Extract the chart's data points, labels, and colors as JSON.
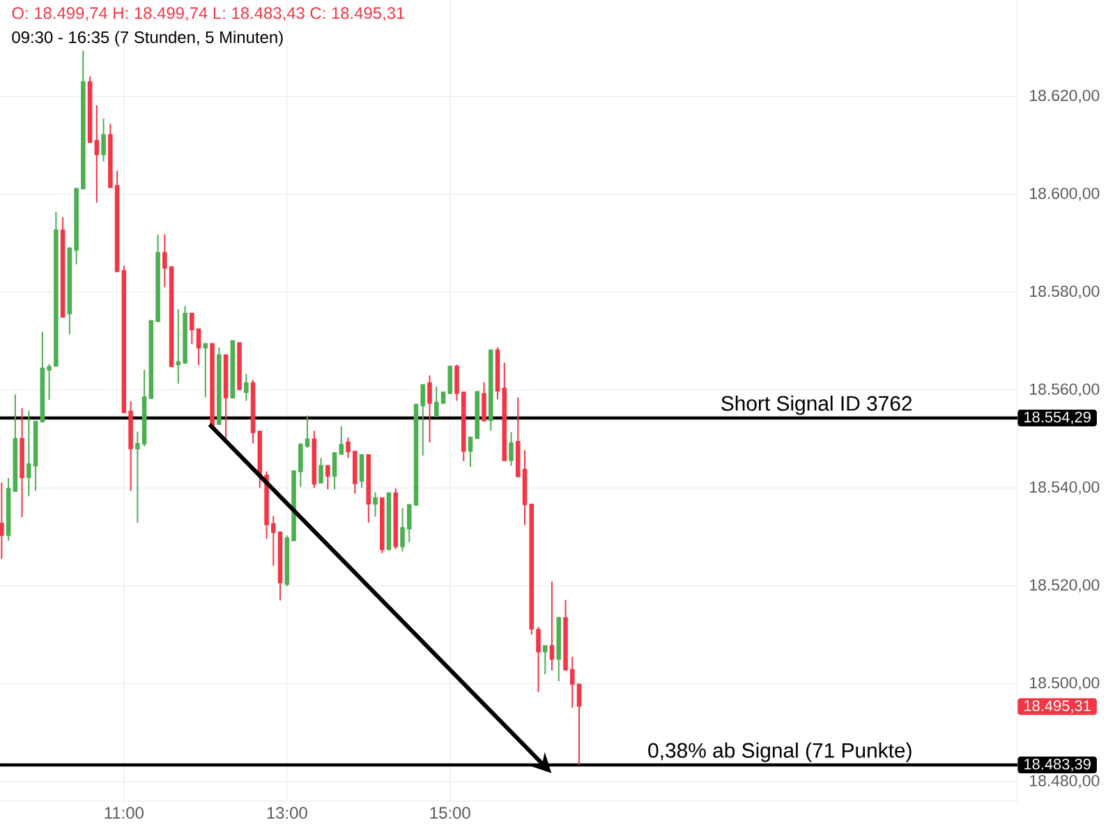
{
  "chart_data": {
    "type": "candlestick",
    "title": "O: 18.499,74  H: 18.499,74  L: 18.483,43  C: 18.495,31",
    "subtitle": "09:30 - 16:35  (7 Stunden, 5 Minuten)",
    "x": [
      9.5,
      9.5833,
      9.6667,
      9.75,
      9.8333,
      9.9167,
      10.0,
      10.0833,
      10.1667,
      10.25,
      10.3333,
      10.4167,
      10.5,
      10.5833,
      10.6667,
      10.75,
      10.8333,
      10.9167,
      11.0,
      11.0833,
      11.1667,
      11.25,
      11.3333,
      11.4167,
      11.5,
      11.5833,
      11.6667,
      11.75,
      11.8333,
      11.9167,
      12.0,
      12.0833,
      12.1667,
      12.25,
      12.3333,
      12.4167,
      12.5,
      12.5833,
      12.6667,
      12.75,
      12.8333,
      12.9167,
      13.0,
      13.0833,
      13.1667,
      13.25,
      13.3333,
      13.4167,
      13.5,
      13.5833,
      13.6667,
      13.75,
      13.8333,
      13.9167,
      14.0,
      14.0833,
      14.1667,
      14.25,
      14.3333,
      14.4167,
      14.5,
      14.5833,
      14.6667,
      14.75,
      14.8333,
      14.9167,
      15.0,
      15.0833,
      15.1667,
      15.25,
      15.3333,
      15.4167,
      15.5,
      15.5833,
      15.6667,
      15.75,
      15.8333,
      15.9167,
      16.0,
      16.0833,
      16.1667,
      16.25,
      16.3333,
      16.4167,
      16.5,
      16.5833
    ],
    "ohlc": [
      [
        18532.6,
        18541.1,
        18525.5,
        18530.2
      ],
      [
        18530.2,
        18542.0,
        18529.2,
        18539.7
      ],
      [
        18539.2,
        18559.1,
        18539.2,
        18549.9
      ],
      [
        18549.9,
        18556.3,
        18534.0,
        18542.0
      ],
      [
        18542.0,
        18555.8,
        18538.3,
        18544.7
      ],
      [
        18544.4,
        18553.4,
        18539.4,
        18553.4
      ],
      [
        18553.4,
        18571.9,
        18553.4,
        18564.3
      ],
      [
        18564.0,
        18565.3,
        18558.0,
        18564.6
      ],
      [
        18564.8,
        18596.4,
        18564.8,
        18592.5
      ],
      [
        18592.5,
        18595.3,
        18574.8,
        18574.8
      ],
      [
        18575.5,
        18589.2,
        18571.4,
        18588.8
      ],
      [
        18588.5,
        18601.3,
        18585.7,
        18601.0
      ],
      [
        18601.0,
        18629.3,
        18601.0,
        18622.8
      ],
      [
        18622.8,
        18624.1,
        18610.5,
        18610.5
      ],
      [
        18610.8,
        18618.2,
        18598.3,
        18608.0
      ],
      [
        18608.0,
        18615.5,
        18606.7,
        18612.0
      ],
      [
        18612.0,
        18614.4,
        18601.3,
        18601.3
      ],
      [
        18601.6,
        18604.8,
        18584.1,
        18584.1
      ],
      [
        18584.2,
        18585.4,
        18555.3,
        18555.3
      ],
      [
        18555.5,
        18557.7,
        18539.4,
        18547.9
      ],
      [
        18547.9,
        18551.5,
        18532.9,
        18548.9
      ],
      [
        18548.9,
        18564.1,
        18548.5,
        18558.4
      ],
      [
        18558.2,
        18574.0,
        18558.2,
        18574.0
      ],
      [
        18573.9,
        18591.8,
        18573.9,
        18587.9
      ],
      [
        18587.9,
        18591.8,
        18581.0,
        18584.8
      ],
      [
        18585.0,
        18585.0,
        18564.7,
        18564.7
      ],
      [
        18565.1,
        18576.5,
        18561.3,
        18565.6
      ],
      [
        18565.4,
        18577.2,
        18565.4,
        18575.5
      ],
      [
        18575.5,
        18575.8,
        18569.4,
        18572.2
      ],
      [
        18572.3,
        18572.3,
        18565.1,
        18568.5
      ],
      [
        18568.5,
        18569.3,
        18558.5,
        18569.3
      ],
      [
        18569.3,
        18569.3,
        18552.6,
        18552.6
      ],
      [
        18552.9,
        18568.7,
        18552.9,
        18567.0
      ],
      [
        18567.0,
        18567.3,
        18549.3,
        18558.3
      ],
      [
        18558.3,
        18570.1,
        18558.3,
        18569.9
      ],
      [
        18569.5,
        18569.5,
        18560.0,
        18560.0
      ],
      [
        18559.4,
        18563.3,
        18557.8,
        18561.3
      ],
      [
        18561.3,
        18562.1,
        18549.1,
        18551.2
      ],
      [
        18551.4,
        18551.4,
        18540.0,
        18542.4
      ],
      [
        18542.4,
        18543.4,
        18529.6,
        18532.4
      ],
      [
        18532.5,
        18534.3,
        18524.1,
        18530.8
      ],
      [
        18530.8,
        18530.8,
        18517.0,
        18520.5
      ],
      [
        18520.2,
        18530.3,
        18519.9,
        18529.6
      ],
      [
        18529.1,
        18543.3,
        18529.1,
        18543.3
      ],
      [
        18543.2,
        18549.2,
        18540.2,
        18548.7
      ],
      [
        18548.4,
        18554.8,
        18548.2,
        18549.8
      ],
      [
        18549.8,
        18551.7,
        18540.0,
        18540.7
      ],
      [
        18540.9,
        18546.1,
        18540.9,
        18544.4
      ],
      [
        18544.4,
        18544.4,
        18539.7,
        18542.3
      ],
      [
        18542.3,
        18547.3,
        18539.7,
        18547.0
      ],
      [
        18546.8,
        18552.6,
        18546.8,
        18548.7
      ],
      [
        18549.2,
        18550.3,
        18546.1,
        18547.3
      ],
      [
        18547.3,
        18547.3,
        18538.8,
        18540.8
      ],
      [
        18541.3,
        18546.6,
        18540.0,
        18546.6
      ],
      [
        18546.6,
        18546.6,
        18532.9,
        18536.6
      ],
      [
        18536.6,
        18539.1,
        18534.1,
        18537.8
      ],
      [
        18537.8,
        18537.8,
        18526.7,
        18527.3
      ],
      [
        18527.3,
        18538.8,
        18527.3,
        18538.8
      ],
      [
        18538.8,
        18539.9,
        18527.5,
        18527.9
      ],
      [
        18527.9,
        18535.9,
        18527.0,
        18531.7
      ],
      [
        18531.5,
        18536.7,
        18528.9,
        18536.4
      ],
      [
        18536.4,
        18557.2,
        18536.4,
        18556.9
      ],
      [
        18556.7,
        18560.9,
        18546.6,
        18560.9
      ],
      [
        18561.3,
        18563.0,
        18549.3,
        18557.2
      ],
      [
        18554.5,
        18560.7,
        18554.5,
        18557.3
      ],
      [
        18557.2,
        18559.7,
        18557.2,
        18559.4
      ],
      [
        18559.2,
        18564.7,
        18559.2,
        18564.7
      ],
      [
        18564.7,
        18565.2,
        18557.8,
        18559.2
      ],
      [
        18559.4,
        18559.4,
        18545.5,
        18547.4
      ],
      [
        18547.4,
        18550.2,
        18544.3,
        18550.2
      ],
      [
        18550.0,
        18559.5,
        18550.0,
        18559.5
      ],
      [
        18559.1,
        18561.6,
        18553.6,
        18553.6
      ],
      [
        18553.7,
        18568.0,
        18551.7,
        18568.0
      ],
      [
        18568.0,
        18568.7,
        18558.1,
        18559.7
      ],
      [
        18560.2,
        18565.6,
        18545.5,
        18545.5
      ],
      [
        18545.5,
        18551.4,
        18544.5,
        18549.0
      ],
      [
        18549.3,
        18558.5,
        18542.2,
        18542.2
      ],
      [
        18543.6,
        18547.7,
        18532.4,
        18536.5
      ],
      [
        18536.5,
        18536.5,
        18510.0,
        18511.1
      ],
      [
        18510.9,
        18511.6,
        18498.3,
        18506.4
      ],
      [
        18506.4,
        18507.6,
        18501.9,
        18507.6
      ],
      [
        18507.6,
        18520.9,
        18502.7,
        18504.9
      ],
      [
        18504.9,
        18513.7,
        18500.5,
        18513.3
      ],
      [
        18513.3,
        18517.1,
        18502.7,
        18502.7
      ],
      [
        18502.7,
        18505.5,
        18495.1,
        18499.8
      ],
      [
        18499.74,
        18499.74,
        18483.43,
        18495.31
      ]
    ],
    "xlim": [
      9.48,
      21.96
    ],
    "ylim": [
      18476,
      18639.7
    ],
    "xticks": [
      {
        "value": 11,
        "label": "11:00"
      },
      {
        "value": 13,
        "label": "13:00"
      },
      {
        "value": 15,
        "label": "15:00"
      }
    ],
    "yticks": [
      {
        "value": 18480,
        "label": "18.480,00"
      },
      {
        "value": 18500,
        "label": "18.500,00"
      },
      {
        "value": 18520,
        "label": "18.520,00"
      },
      {
        "value": 18540,
        "label": "18.540,00"
      },
      {
        "value": 18560,
        "label": "18.560,00"
      },
      {
        "value": 18580,
        "label": "18.580,00"
      },
      {
        "value": 18600,
        "label": "18.600,00"
      },
      {
        "value": 18620,
        "label": "18.620,00"
      }
    ],
    "grid": true,
    "ref_lines": [
      {
        "axis": "y",
        "value": 18554.29,
        "label": "Short Signal  ID 3762",
        "color": "#000000"
      },
      {
        "axis": "y",
        "value": 18483.39,
        "label": "0,38% ab Signal (71 Punkte)",
        "color": "#000000"
      }
    ],
    "annotations": [
      "18.554,29",
      "18.495,31",
      "18.483,39"
    ]
  }
}
